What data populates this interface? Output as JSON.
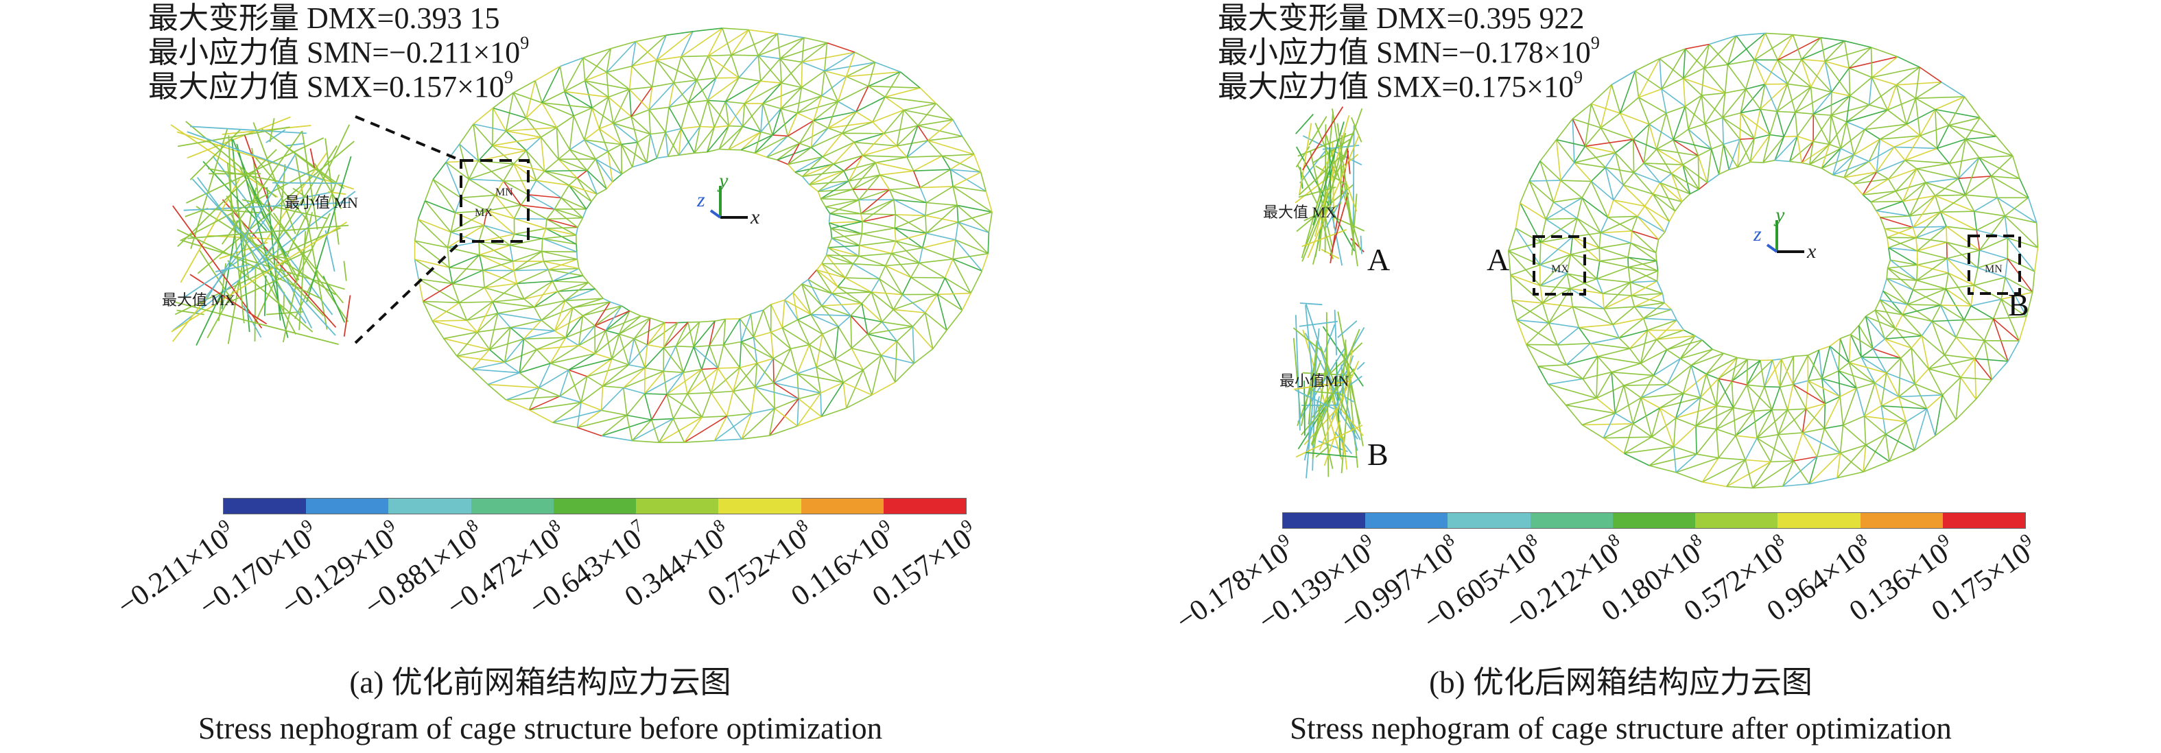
{
  "palette": [
    "#2b3e9b",
    "#3f8fd6",
    "#6ec4c8",
    "#5fbf8a",
    "#5bb53a",
    "#9fce3a",
    "#e3e039",
    "#ee9b2b",
    "#e2262b"
  ],
  "panel_a": {
    "stats": [
      {
        "label": "最大变形量 DMX=0.393 15"
      },
      {
        "label": "最小应力值 SMN=−0.211×10",
        "exp": "9"
      },
      {
        "label": "最大应力值 SMX=0.157×10",
        "exp": "9"
      }
    ],
    "inset_min_label": "最小值 MN",
    "inset_max_label": "最大值 MX",
    "box_mn": "MN",
    "box_mx": "MX",
    "axes": {
      "x": "x",
      "y": "y",
      "z": "z"
    },
    "ticks": [
      {
        "m": "−0.211×10",
        "e": "9"
      },
      {
        "m": "−0.170×10",
        "e": "9"
      },
      {
        "m": "−0.129×10",
        "e": "9"
      },
      {
        "m": "−0.881×10",
        "e": "8"
      },
      {
        "m": "−0.472×10",
        "e": "8"
      },
      {
        "m": "−0.643×10",
        "e": "7"
      },
      {
        "m": "0.344×10",
        "e": "8"
      },
      {
        "m": "0.752×10",
        "e": "8"
      },
      {
        "m": "0.116×10",
        "e": "9"
      },
      {
        "m": "0.157×10",
        "e": "9"
      }
    ],
    "caption_cn": "(a) 优化前网箱结构应力云图",
    "caption_en": "Stress nephogram of cage structure before optimization"
  },
  "panel_b": {
    "stats": [
      {
        "label": "最大变形量 DMX=0.395 922"
      },
      {
        "label": "最小应力值 SMN=−0.178×10",
        "exp": "9"
      },
      {
        "label": "最大应力值 SMX=0.175×10",
        "exp": "9"
      }
    ],
    "inset_a_label": "最大值 MX",
    "inset_b_label": "最小值MN",
    "letter_a": "A",
    "letter_b": "B",
    "box_mx": "MX",
    "box_mn": "MN",
    "axes": {
      "x": "x",
      "y": "y",
      "z": "z"
    },
    "ticks": [
      {
        "m": "−0.178×10",
        "e": "9"
      },
      {
        "m": "−0.139×10",
        "e": "9"
      },
      {
        "m": "−0.997×10",
        "e": "8"
      },
      {
        "m": "−0.605×10",
        "e": "8"
      },
      {
        "m": "−0.212×10",
        "e": "8"
      },
      {
        "m": "0.180×10",
        "e": "8"
      },
      {
        "m": "0.572×10",
        "e": "8"
      },
      {
        "m": "0.964×10",
        "e": "8"
      },
      {
        "m": "0.136×10",
        "e": "9"
      },
      {
        "m": "0.175×10",
        "e": "9"
      }
    ],
    "caption_cn": "(b) 优化后网箱结构应力云图",
    "caption_en": "Stress nephogram of cage structure after optimization"
  }
}
